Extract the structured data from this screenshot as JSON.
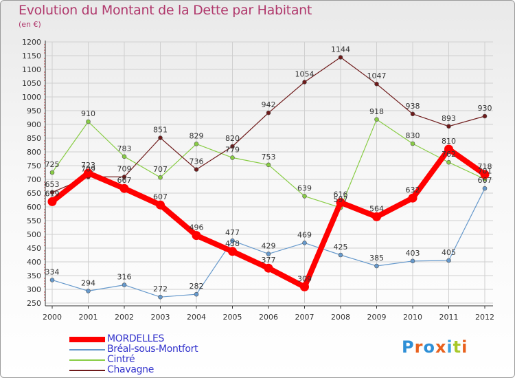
{
  "header": {
    "title": "Evolution du Montant de la Dette par Habitant",
    "unit": "(en €)"
  },
  "colors": {
    "title": "#b0386c",
    "legend_text": "#3333cc"
  },
  "logo": {
    "text": "Proxiti",
    "letters": [
      "P",
      "r",
      "o",
      "x",
      "i",
      "t",
      "i"
    ],
    "colors": [
      "#2e8fd6",
      "#e8611d",
      "#2e8fd6",
      "#e8611d",
      "#3ba1e0",
      "#a8c82a",
      "#e8611d"
    ]
  },
  "chart_data": {
    "type": "line",
    "title": "Evolution du Montant de la Dette par Habitant",
    "ylabel": "(en €)",
    "x": [
      "2000",
      "2001",
      "2002",
      "2003",
      "2004",
      "2005",
      "2006",
      "2007",
      "2008",
      "2009",
      "2010",
      "2011",
      "2012"
    ],
    "y_ticks": [
      250,
      300,
      350,
      400,
      450,
      500,
      550,
      600,
      650,
      700,
      750,
      800,
      850,
      900,
      950,
      1000,
      1050,
      1100,
      1150,
      1200
    ],
    "ylim": [
      250,
      1200
    ],
    "grid": true,
    "legend": "bottom-left",
    "series": [
      {
        "name": "MORDELLES",
        "color": "#ff0000",
        "emphasis": true,
        "values": [
          619,
          723,
          667,
          607,
          496,
          438,
          377,
          309,
          616,
          564,
          632,
          810,
          718
        ],
        "labels": [
          "619",
          "723",
          "667",
          "607",
          "496",
          "438",
          "377",
          "309",
          "616",
          "564",
          "632",
          "810",
          "718"
        ]
      },
      {
        "name": "Bréal-sous-Montfort",
        "color": "#6699cc",
        "values": [
          334,
          294,
          316,
          272,
          282,
          477,
          429,
          469,
          425,
          385,
          403,
          405,
          667
        ],
        "labels": [
          "334",
          "294",
          "316",
          "272",
          "282",
          "477",
          "429",
          "469",
          "425",
          "385",
          "403",
          "405",
          "667"
        ]
      },
      {
        "name": "Cintré",
        "color": "#88cc44",
        "values": [
          725,
          910,
          783,
          707,
          829,
          779,
          753,
          639,
          597,
          918,
          830,
          762,
          701
        ],
        "labels": [
          "725",
          "910",
          "783",
          "707",
          "829",
          "779",
          "753",
          "639",
          "597",
          "918",
          "830",
          "762",
          "701"
        ]
      },
      {
        "name": "Chavagne",
        "color": "#6e1a1a",
        "values": [
          653,
          709,
          709,
          851,
          736,
          820,
          942,
          1054,
          1144,
          1047,
          938,
          893,
          930
        ],
        "labels": [
          "653",
          "709",
          "709",
          "851",
          "736",
          "820",
          "942",
          "1054",
          "1144",
          "1047",
          "938",
          "893",
          "930"
        ]
      }
    ]
  }
}
